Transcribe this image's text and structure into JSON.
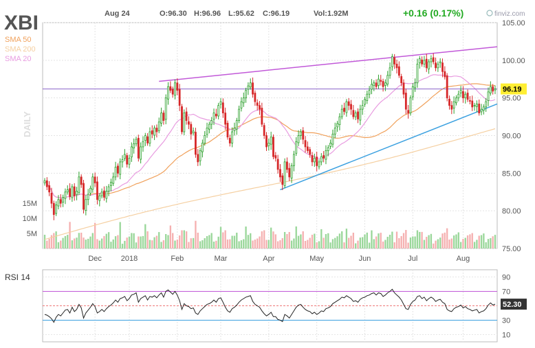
{
  "header": {
    "ticker": "XBI",
    "date": "Aug 24",
    "open": "O:96.30",
    "high": "H:96.96",
    "low": "L:95.62",
    "close": "C:96.19",
    "volume": "Vol:1.92M",
    "change": "+0.16 (0.17%)",
    "brand": "finviz.com"
  },
  "legend": [
    {
      "label": "SMA 50",
      "color": "#f0a05a"
    },
    {
      "label": "SMA 200",
      "color": "#f5cfa0"
    },
    {
      "label": "SMA 20",
      "color": "#e89be0"
    }
  ],
  "side_label": "DAILY",
  "colors": {
    "up": "#2ca02c",
    "down": "#d62728",
    "vol_up": "#9ad79a",
    "vol_down": "#f5b0b0",
    "trend_purple": "#c158d8",
    "trend_blue": "#3aa0e0",
    "hline": "#8a62c8",
    "price_label_bg": "#ffee33",
    "change_color": "#22aa22"
  },
  "chart_data": [
    {
      "type": "candlestick",
      "title": "XBI",
      "x_ticks": [
        "Dec",
        "2018",
        "Feb",
        "Mar",
        "Apr",
        "May",
        "Jun",
        "Jul",
        "Aug"
      ],
      "y_ticks": [
        105,
        100,
        95,
        90,
        85,
        80,
        75
      ],
      "ylim": [
        75,
        105
      ],
      "last_price": 96.19,
      "volume_ticks": [
        "15M",
        "10M",
        "5M"
      ],
      "trendlines": [
        {
          "color": "purple",
          "from": [
            "Feb",
            97.2
          ],
          "to": [
            "Aug 24",
            101.8
          ]
        },
        {
          "color": "blue",
          "from": [
            "Apr",
            82.8
          ],
          "to": [
            "Aug 24",
            94.2
          ]
        }
      ],
      "horizontal_line": 96.19,
      "close_series": [
        84.0,
        83.2,
        82.5,
        81.0,
        79.5,
        80.8,
        81.5,
        81.0,
        81.8,
        82.5,
        82.8,
        81.9,
        83.2,
        82.0,
        82.6,
        84.5,
        83.5,
        80.2,
        81.5,
        82.2,
        83.0,
        84.5,
        83.7,
        81.5,
        82.0,
        82.5,
        81.8,
        82.6,
        83.2,
        83.8,
        84.5,
        85.8,
        85.0,
        86.5,
        86.8,
        87.5,
        86.2,
        87.0,
        88.5,
        88.9,
        89.5,
        87.0,
        88.5,
        89.2,
        90.0,
        89.0,
        90.5,
        90.2,
        91.0,
        90.5,
        91.8,
        93.0,
        92.0,
        95.0,
        96.5,
        96.0,
        95.5,
        97.0,
        96.0,
        94.0,
        90.5,
        93.0,
        92.0,
        91.5,
        90.2,
        90.6,
        87.5,
        86.5,
        88.0,
        89.0,
        90.0,
        91.0,
        91.5,
        92.0,
        93.0,
        92.6,
        94.0,
        94.5,
        93.0,
        91.5,
        89.8,
        89.0,
        90.5,
        91.0,
        92.0,
        93.5,
        94.5,
        95.0,
        96.0,
        96.6,
        97.0,
        95.5,
        94.5,
        94.0,
        93.5,
        91.5,
        90.0,
        88.5,
        89.0,
        89.8,
        87.2,
        87.0,
        85.5,
        84.5,
        83.5,
        86.5,
        85.5,
        84.5,
        86.0,
        87.5,
        89.2,
        90.0,
        90.5,
        89.5,
        88.5,
        88.0,
        87.5,
        86.5,
        87.0,
        86.0,
        86.5,
        87.2,
        87.0,
        88.0,
        88.4,
        89.0,
        90.2,
        91.0,
        91.6,
        92.5,
        93.5,
        93.2,
        94.5,
        94.0,
        93.5,
        92.5,
        93.0,
        92.2,
        93.5,
        94.0,
        94.8,
        95.5,
        96.0,
        96.8,
        97.0,
        96.5,
        97.5,
        97.2,
        96.5,
        97.0,
        98.0,
        99.0,
        100.5,
        99.5,
        99.0,
        98.0,
        97.0,
        95.5,
        93.5,
        93.0,
        95.0,
        96.5,
        97.0,
        99.5,
        100.2,
        99.5,
        100.0,
        99.0,
        99.8,
        100.2,
        99.8,
        99.0,
        99.5,
        99.8,
        98.5,
        97.8,
        95.0,
        94.0,
        93.5,
        94.5,
        95.0,
        95.5,
        96.0,
        95.0,
        95.5,
        94.8,
        94.6,
        93.8,
        94.0,
        94.2,
        93.0,
        93.5,
        93.8,
        94.5,
        95.8,
        96.5,
        95.9,
        96.19
      ],
      "rsi": {
        "label": "RSI 14",
        "last": 52.3,
        "y_ticks": [
          90,
          70,
          50,
          30,
          10
        ],
        "series": [
          38,
          37,
          35,
          32,
          27,
          34,
          38,
          36,
          40,
          44,
          45,
          40,
          48,
          42,
          45,
          52,
          47,
          33,
          40,
          44,
          48,
          53,
          49,
          40,
          42,
          45,
          42,
          46,
          49,
          51,
          54,
          58,
          55,
          60,
          61,
          63,
          57,
          60,
          65,
          66,
          68,
          55,
          60,
          62,
          64,
          58,
          63,
          62,
          64,
          61,
          65,
          68,
          62,
          70,
          72,
          69,
          66,
          70,
          65,
          57,
          45,
          53,
          50,
          49,
          46,
          47,
          40,
          38,
          43,
          46,
          49,
          52,
          53,
          55,
          58,
          55,
          60,
          61,
          55,
          48,
          43,
          41,
          46,
          48,
          51,
          55,
          58,
          60,
          62,
          63,
          64,
          56,
          52,
          50,
          48,
          43,
          39,
          36,
          38,
          41,
          35,
          35,
          31,
          30,
          28,
          38,
          36,
          33,
          38,
          43,
          48,
          51,
          52,
          48,
          45,
          43,
          42,
          39,
          41,
          38,
          40,
          43,
          42,
          46,
          47,
          49,
          53,
          55,
          57,
          59,
          62,
          61,
          64,
          62,
          60,
          56,
          57,
          55,
          59,
          61,
          62,
          64,
          65,
          67,
          68,
          65,
          68,
          67,
          63,
          65,
          68,
          70,
          73,
          68,
          65,
          62,
          58,
          52,
          46,
          45,
          52,
          56,
          58,
          63,
          64,
          60,
          62,
          57,
          60,
          62,
          60,
          56,
          58,
          59,
          55,
          53,
          45,
          43,
          42,
          46,
          48,
          49,
          51,
          47,
          49,
          46,
          45,
          43,
          44,
          45,
          40,
          42,
          43,
          46,
          51,
          54,
          51,
          52.3
        ]
      }
    }
  ]
}
